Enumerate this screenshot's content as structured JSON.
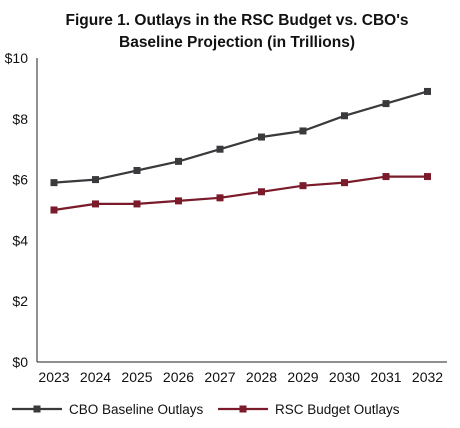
{
  "chart_data": {
    "type": "line",
    "title_line1": "Figure 1. Outlays in the RSC Budget vs. CBO's",
    "title_line2": "Baseline Projection  (in Trillions)",
    "categories": [
      "2023",
      "2024",
      "2025",
      "2026",
      "2027",
      "2028",
      "2029",
      "2030",
      "2031",
      "2032"
    ],
    "y_ticks": [
      "$0",
      "$2",
      "$4",
      "$6",
      "$8",
      "$10"
    ],
    "ylim": [
      0,
      10
    ],
    "grid": false,
    "legend_position": "bottom",
    "series": [
      {
        "name": "CBO Baseline Outlays",
        "color": "#3a3a3d",
        "marker": "square",
        "values": [
          5.9,
          6.0,
          6.3,
          6.6,
          7.0,
          7.4,
          7.6,
          8.1,
          8.5,
          8.9
        ]
      },
      {
        "name": "RSC Budget Outlays",
        "color": "#7a1a2a",
        "marker": "square",
        "values": [
          5.0,
          5.2,
          5.2,
          5.3,
          5.4,
          5.6,
          5.8,
          5.9,
          6.1,
          6.1
        ]
      }
    ]
  }
}
